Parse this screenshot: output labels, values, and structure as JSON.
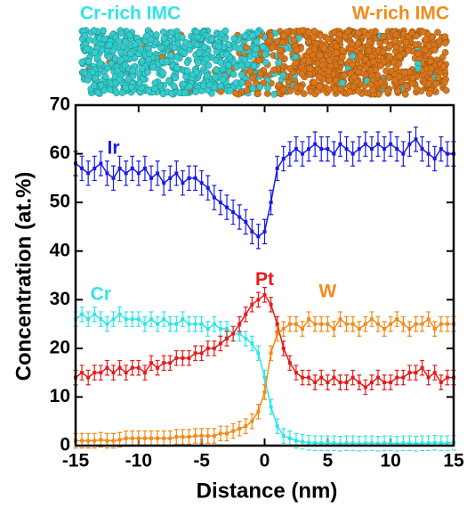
{
  "chart_data": {
    "type": "line",
    "annotations": [
      "Cr-rich IMC",
      "W-rich IMC"
    ],
    "x_label": "Distance (nm)",
    "y_label": "Concentration (at.%)",
    "xlim": [
      -15,
      15
    ],
    "xticks": [
      -15,
      -10,
      -5,
      0,
      5,
      10,
      15
    ],
    "ylim": [
      0,
      70
    ],
    "yticks": [
      0,
      10,
      20,
      30,
      40,
      50,
      60,
      70
    ],
    "x": [
      -15,
      -14.5,
      -14,
      -13.5,
      -13,
      -12.5,
      -12,
      -11.5,
      -11,
      -10.5,
      -10,
      -9.5,
      -9,
      -8.5,
      -8,
      -7.5,
      -7,
      -6.5,
      -6,
      -5.5,
      -5,
      -4.5,
      -4,
      -3.5,
      -3,
      -2.5,
      -2,
      -1.5,
      -1,
      -0.5,
      0,
      0.5,
      1,
      1.5,
      2,
      2.5,
      3,
      3.5,
      4,
      4.5,
      5,
      5.5,
      6,
      6.5,
      7,
      7.5,
      8,
      8.5,
      9,
      9.5,
      10,
      10.5,
      11,
      11.5,
      12,
      12.5,
      13,
      13.5,
      14,
      14.5,
      15
    ],
    "series": [
      {
        "name": "Ir",
        "color": "#1a1ae6",
        "error": 2.5,
        "values": [
          58,
          57,
          56,
          57,
          58,
          56,
          55,
          57,
          56,
          57,
          56,
          57,
          55,
          56,
          54,
          55,
          56,
          54,
          55,
          55,
          54,
          53,
          51,
          50,
          49,
          48,
          47,
          46,
          44,
          43,
          44,
          50,
          57,
          59,
          60,
          61,
          60,
          61,
          62,
          61,
          61,
          60,
          62,
          61,
          60,
          61,
          62,
          61,
          62,
          61,
          62,
          61,
          60,
          62,
          63,
          61,
          60,
          59,
          61,
          60,
          60
        ]
      },
      {
        "name": "Cr",
        "color": "#2ee6e6",
        "error": 1.5,
        "values": [
          26,
          27,
          26,
          27,
          26,
          25,
          26,
          27,
          26,
          26,
          26,
          25,
          26,
          25,
          26,
          25,
          25,
          26,
          25,
          25,
          25,
          24,
          25,
          24,
          24,
          23,
          23,
          22,
          21,
          19,
          14,
          8,
          4,
          2,
          1.5,
          1,
          0.8,
          0.6,
          0.5,
          0.5,
          0.5,
          0.5,
          0.4,
          0.5,
          0.5,
          0.4,
          0.5,
          0.5,
          0.4,
          0.5,
          0.5,
          0.4,
          0.5,
          0.5,
          0.4,
          0.5,
          0.5,
          0.6,
          0.5,
          0.5,
          0.6
        ]
      },
      {
        "name": "Pt",
        "color": "#e61a1a",
        "error": 1.5,
        "values": [
          14,
          15,
          14,
          15,
          15,
          16,
          15,
          16,
          15,
          16,
          16,
          15,
          17,
          16,
          17,
          17,
          18,
          18,
          18,
          19,
          19,
          20,
          20,
          21,
          22,
          23,
          25,
          27,
          29,
          30,
          31,
          29,
          25,
          20,
          17,
          15,
          14,
          14,
          13,
          14,
          13,
          14,
          13,
          13,
          14,
          13,
          12,
          13,
          14,
          13,
          13,
          14,
          14,
          15,
          15,
          16,
          14,
          15,
          13,
          14,
          14
        ]
      },
      {
        "name": "W",
        "color": "#f28a1a",
        "error": 1.5,
        "values": [
          1,
          1,
          1,
          1,
          1.2,
          1,
          1,
          1.2,
          1.5,
          1.5,
          1.5,
          1.5,
          1.5,
          1.5,
          1.5,
          1.5,
          1.8,
          1.8,
          1.8,
          2,
          2,
          2,
          2,
          2.5,
          2.5,
          3,
          3.5,
          4,
          5,
          7,
          11,
          19,
          23,
          24,
          25,
          25,
          24,
          26,
          25,
          25,
          25,
          24,
          26,
          25,
          25,
          24,
          25,
          26,
          25,
          24,
          25,
          26,
          25,
          24,
          25,
          25,
          26,
          24,
          25,
          25,
          25
        ]
      }
    ]
  }
}
